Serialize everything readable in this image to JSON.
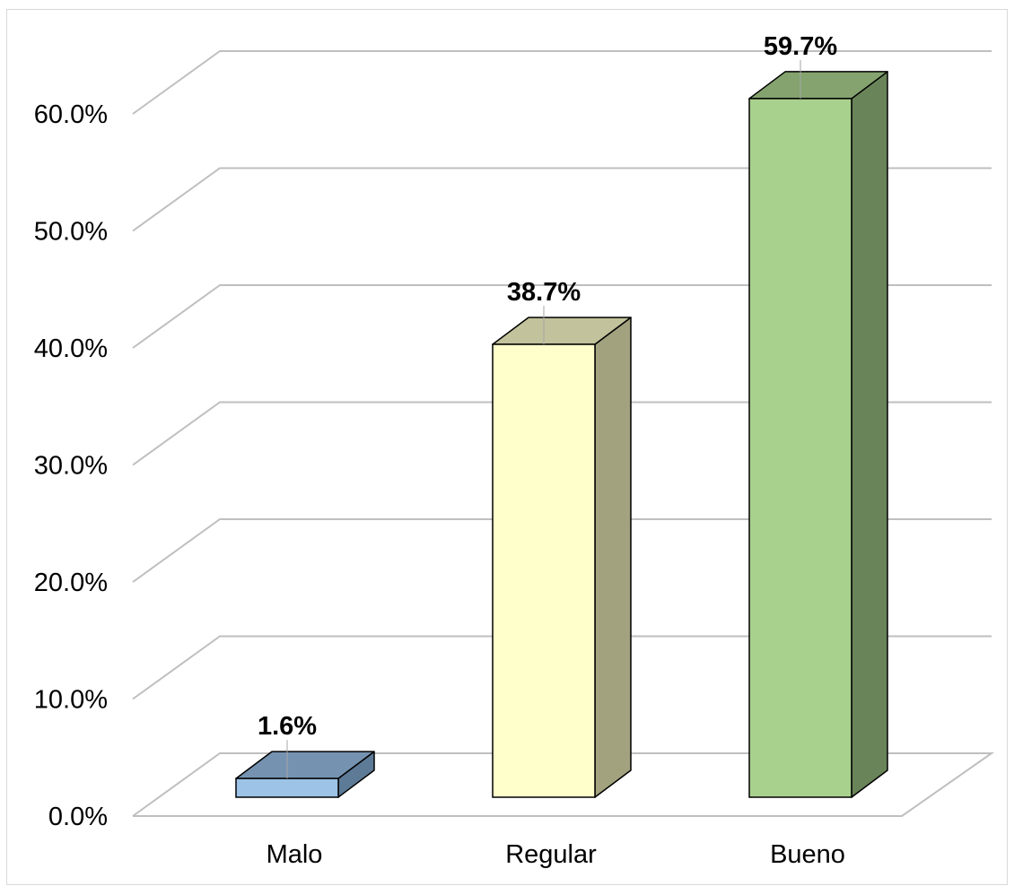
{
  "chart_data": {
    "type": "bar",
    "style": "3d-column",
    "categories": [
      "Malo",
      "Regular",
      "Bueno"
    ],
    "values": [
      1.6,
      38.7,
      59.7
    ],
    "data_labels": [
      "1.6%",
      "38.7%",
      "59.7%"
    ],
    "yticks": [
      0,
      10,
      20,
      30,
      40,
      50,
      60
    ],
    "ytick_labels": [
      "0.0%",
      "10.0%",
      "20.0%",
      "30.0%",
      "40.0%",
      "50.0%",
      "60.0%"
    ],
    "ylim": [
      0,
      60
    ],
    "grid": true,
    "legend": "none",
    "title": "",
    "xlabel": "",
    "ylabel": "",
    "colors": {
      "bars": [
        {
          "front": "#9dc3e6",
          "top": "#7593b0",
          "side": "#5d7a96"
        },
        {
          "front": "#ffffcc",
          "top": "#c2c29c",
          "side": "#a2a27f"
        },
        {
          "front": "#a9d18e",
          "top": "#84a36e",
          "side": "#6a8459"
        }
      ],
      "grid": "#bfbfbf",
      "outline": "#000000",
      "text": "#000000"
    }
  }
}
